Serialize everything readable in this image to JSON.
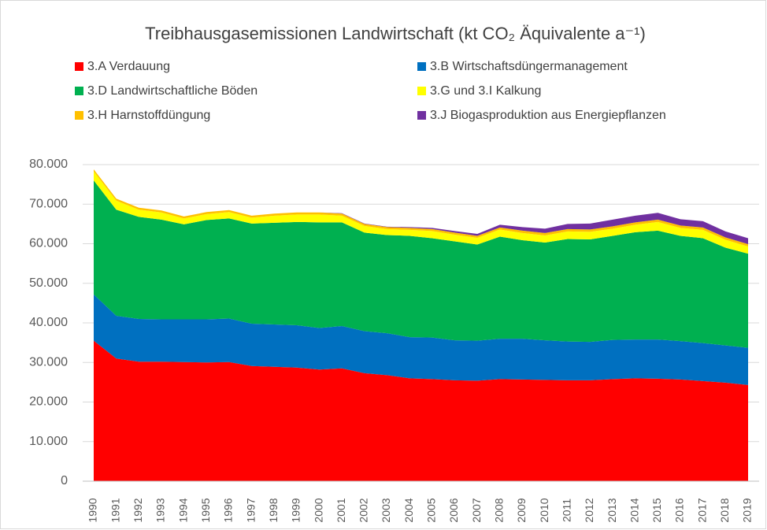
{
  "chart_data": {
    "type": "stacked-area",
    "title": "Treibhausgasemissionen Landwirtschaft (kt CO₂ Äquivalente a⁻¹)",
    "categories": [
      "1990",
      "1991",
      "1992",
      "1993",
      "1994",
      "1995",
      "1996",
      "1997",
      "1998",
      "1999",
      "2000",
      "2001",
      "2002",
      "2003",
      "2004",
      "2005",
      "2006",
      "2007",
      "2008",
      "2009",
      "2010",
      "2011",
      "2012",
      "2013",
      "2014",
      "2015",
      "2016",
      "2017",
      "2018",
      "2019"
    ],
    "series": [
      {
        "name": "3.A Verdauung",
        "color": "#ff0000",
        "values": [
          35500,
          31000,
          30200,
          30200,
          30100,
          30000,
          30100,
          29100,
          28900,
          28700,
          28200,
          28500,
          27300,
          26800,
          26000,
          25800,
          25500,
          25400,
          25800,
          25700,
          25600,
          25500,
          25500,
          25800,
          26000,
          25900,
          25700,
          25300,
          24900,
          24300
        ]
      },
      {
        "name": "3.B Wirtschaftsdüngermanagement",
        "color": "#0070c0",
        "values": [
          11700,
          10800,
          10800,
          10700,
          10800,
          10900,
          11000,
          10700,
          10700,
          10700,
          10500,
          10700,
          10600,
          10600,
          10400,
          10500,
          10100,
          10100,
          10200,
          10300,
          10000,
          9800,
          9700,
          9900,
          9800,
          9900,
          9700,
          9600,
          9400,
          9400
        ]
      },
      {
        "name": "3.D Landwirtschaftliche Böden",
        "color": "#00b050",
        "values": [
          28800,
          26800,
          25800,
          25200,
          24000,
          25100,
          25300,
          25300,
          25700,
          26100,
          26700,
          26200,
          24900,
          24800,
          25600,
          25100,
          25000,
          24300,
          25800,
          24900,
          24700,
          25900,
          25900,
          26300,
          27100,
          27500,
          26600,
          26500,
          24700,
          23800
        ]
      },
      {
        "name": "3.G und 3.I Kalkung",
        "color": "#ffff00",
        "values": [
          2300,
          2300,
          1800,
          1800,
          1500,
          1500,
          1600,
          1500,
          1800,
          1900,
          2000,
          1700,
          1700,
          1500,
          1500,
          1800,
          1700,
          1700,
          1800,
          1800,
          1800,
          1900,
          1900,
          1800,
          1900,
          2200,
          2000,
          2100,
          2000,
          1800
        ]
      },
      {
        "name": "3.H Harnstoffdüngung",
        "color": "#ffc000",
        "values": [
          500,
          500,
          500,
          500,
          500,
          500,
          500,
          500,
          500,
          500,
          500,
          500,
          500,
          500,
          500,
          500,
          500,
          500,
          500,
          600,
          600,
          600,
          600,
          600,
          600,
          600,
          600,
          600,
          600,
          600
        ]
      },
      {
        "name": "3.J Biogasproduktion aus Energiepflanzen",
        "color": "#7030a0",
        "values": [
          0,
          0,
          0,
          0,
          0,
          0,
          0,
          0,
          0,
          0,
          0,
          100,
          100,
          100,
          200,
          300,
          400,
          500,
          700,
          900,
          1100,
          1300,
          1500,
          1700,
          1700,
          1700,
          1600,
          1600,
          1500,
          1500
        ]
      }
    ],
    "ylim": [
      0,
      80000
    ],
    "yticks": [
      0,
      {
        "value": 10000,
        "label": "10.000"
      },
      {
        "value": 20000,
        "label": "20.000"
      },
      {
        "value": 30000,
        "label": "30.000"
      },
      {
        "value": 40000,
        "label": "40.000"
      },
      {
        "value": 50000,
        "label": "50.000"
      },
      {
        "value": 60000,
        "label": "60.000"
      },
      {
        "value": 70000,
        "label": "70.000"
      },
      {
        "value": 80000,
        "label": "80.000"
      }
    ],
    "grid": true
  }
}
